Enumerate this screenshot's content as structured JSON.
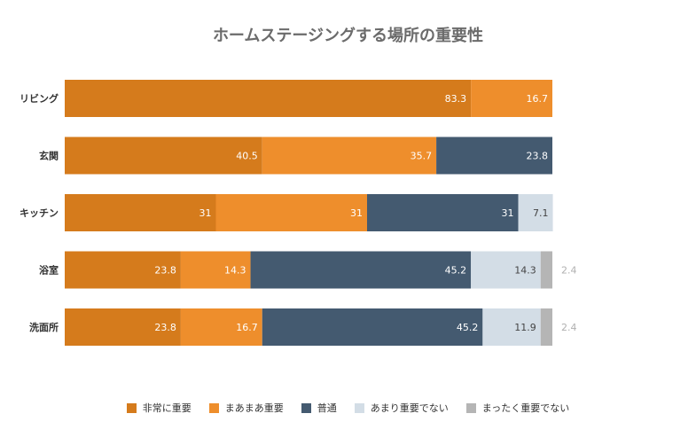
{
  "chart_data": {
    "type": "bar",
    "orientation": "horizontal",
    "stacked": true,
    "title": "ホームステージングする場所の重要性",
    "categories": [
      "リビング",
      "玄関",
      "キッチン",
      "浴室",
      "洗面所"
    ],
    "series": [
      {
        "name": "非常に重要",
        "color": "#d57b1c",
        "values": [
          83.3,
          40.5,
          31,
          23.8,
          23.8
        ]
      },
      {
        "name": "まあまあ重要",
        "color": "#ee8e2c",
        "values": [
          16.7,
          35.7,
          31,
          14.3,
          16.7
        ]
      },
      {
        "name": "普通",
        "color": "#445a70",
        "values": [
          null,
          23.8,
          31,
          45.2,
          45.2
        ]
      },
      {
        "name": "あまり重要でない",
        "color": "#d3dde6",
        "values": [
          null,
          null,
          7.1,
          14.3,
          11.9
        ]
      },
      {
        "name": "まったく重要でない",
        "color": "#b5b5b5",
        "values": [
          null,
          null,
          null,
          2.4,
          2.4
        ]
      }
    ],
    "xlim": [
      0,
      100
    ],
    "legend_position": "bottom",
    "grid": false
  }
}
